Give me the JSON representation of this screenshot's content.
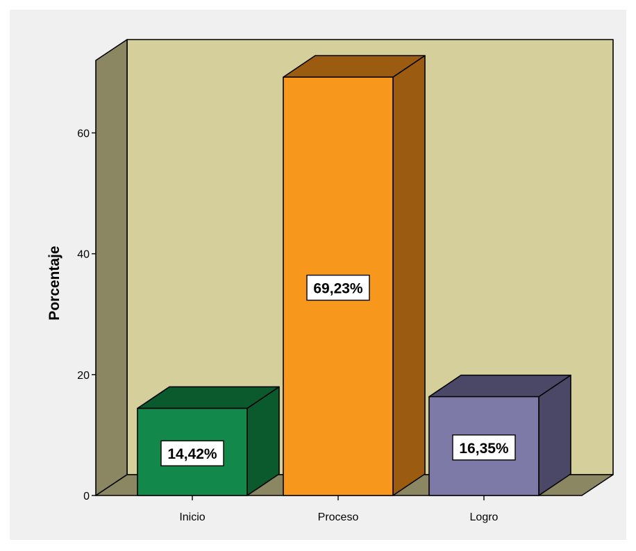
{
  "chart_data": {
    "type": "bar",
    "categories": [
      "Inicio",
      "Proceso",
      "Logro"
    ],
    "values": [
      14.42,
      69.23,
      16.35
    ],
    "data_labels": [
      "14,42%",
      "69,23%",
      "16,35%"
    ],
    "ylabel": "Porcentaje",
    "xlabel": "",
    "ylim": [
      0,
      72
    ],
    "yticks": [
      "0",
      "20",
      "40",
      "60"
    ],
    "ytick_values": [
      0,
      20,
      40,
      60
    ],
    "three_d": true,
    "grid": false,
    "colors": {
      "page_bg": "#f0f0f0",
      "plot_back": "#d4cf9b",
      "plot_side": "#8a8762",
      "plot_floor": "#8a8762",
      "bars": [
        {
          "front": "#12894a",
          "side": "#0b5a2e",
          "top": "#0b5a2e"
        },
        {
          "front": "#f7981d",
          "side": "#9b5c11",
          "top": "#9b5c11"
        },
        {
          "front": "#7d7aa8",
          "side": "#4a4866",
          "top": "#4a4866"
        }
      ]
    }
  }
}
